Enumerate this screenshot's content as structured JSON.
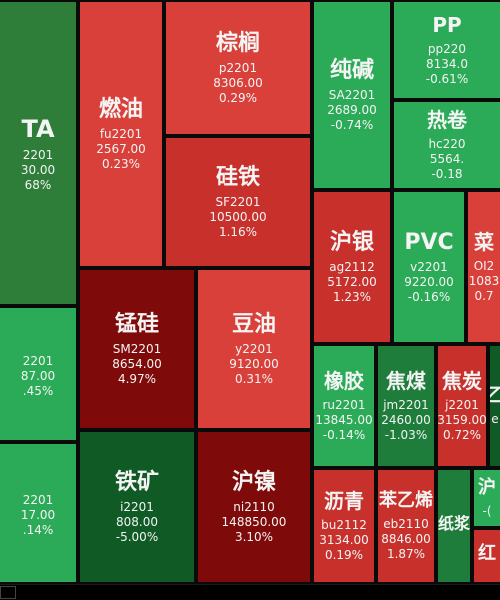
{
  "tiles": [
    {
      "id": "pta",
      "name": "TA",
      "code": "2201",
      "price": "30.00",
      "pct": "68%",
      "color": "neutral",
      "name_size": 24
    },
    {
      "id": "pp",
      "name": "PP",
      "code": "pp220",
      "price": "8134.0",
      "pct": "-0.61%",
      "color": "light-green",
      "name_size": 20
    },
    {
      "id": "chunjian",
      "name": "纯碱",
      "code": "SA2201",
      "price": "2689.00",
      "pct": "-0.74%",
      "color": "light-green",
      "name_size": 22
    },
    {
      "id": "zonglv",
      "name": "棕榈",
      "code": "p2201",
      "price": "8306.00",
      "pct": "0.29%",
      "color": "light-red",
      "name_size": 22
    },
    {
      "id": "ranyou",
      "name": "燃油",
      "code": "fu2201",
      "price": "2567.00",
      "pct": "0.23%",
      "color": "light-red",
      "name_size": 22
    },
    {
      "id": "rejuan",
      "name": "热卷",
      "code": "hc220",
      "price": "5564.",
      "pct": "-0.18",
      "color": "light-green",
      "name_size": 20
    },
    {
      "id": "guitie",
      "name": "硅铁",
      "code": "SF2201",
      "price": "10500.00",
      "pct": "1.16%",
      "color": "red",
      "name_size": 22
    },
    {
      "id": "huyin",
      "name": "沪银",
      "code": "ag2112",
      "price": "5172.00",
      "pct": "1.23%",
      "color": "red",
      "name_size": 22
    },
    {
      "id": "pvc",
      "name": "PVC",
      "code": "v2201",
      "price": "9220.00",
      "pct": "-0.16%",
      "color": "light-green",
      "name_size": 22
    },
    {
      "id": "cai",
      "name": "菜",
      "code": "OI2",
      "price": "1083",
      "pct": "0.7",
      "color": "light-red",
      "name_size": 20
    },
    {
      "id": "left2",
      "name": "",
      "code": "2201",
      "price": "87.00",
      "pct": ".45%",
      "color": "light-green",
      "name_size": 18
    },
    {
      "id": "menggui",
      "name": "锰硅",
      "code": "SM2201",
      "price": "8654.00",
      "pct": "4.97%",
      "color": "dark-red",
      "name_size": 22
    },
    {
      "id": "douyou",
      "name": "豆油",
      "code": "y2201",
      "price": "9120.00",
      "pct": "0.31%",
      "color": "light-red",
      "name_size": 22
    },
    {
      "id": "xiangjiao",
      "name": "橡胶",
      "code": "ru2201",
      "price": "13845.00",
      "pct": "-0.14%",
      "color": "light-green",
      "name_size": 20
    },
    {
      "id": "jiaomei",
      "name": "焦煤",
      "code": "jm2201",
      "price": "2460.00",
      "pct": "-1.03%",
      "color": "mid-green",
      "name_size": 20
    },
    {
      "id": "jiaotan",
      "name": "焦炭",
      "code": "j2201",
      "price": "3159.00",
      "pct": "0.72%",
      "color": "red",
      "name_size": 20
    },
    {
      "id": "yi",
      "name": "乙",
      "code": "e",
      "price": "",
      "pct": "",
      "color": "dark-green",
      "name_size": 18
    },
    {
      "id": "left3",
      "name": "",
      "code": "2201",
      "price": "17.00",
      "pct": ".14%",
      "color": "light-green",
      "name_size": 18
    },
    {
      "id": "tiekuang",
      "name": "铁矿",
      "code": "i2201",
      "price": "808.00",
      "pct": "-5.00%",
      "color": "dark-green",
      "name_size": 22
    },
    {
      "id": "hunie",
      "name": "沪镍",
      "code": "ni2110",
      "price": "148850.00",
      "pct": "3.10%",
      "color": "dark-red",
      "name_size": 22
    },
    {
      "id": "liqing",
      "name": "沥青",
      "code": "bu2112",
      "price": "3134.00",
      "pct": "0.19%",
      "color": "red",
      "name_size": 20
    },
    {
      "id": "benyixi",
      "name": "苯乙烯",
      "code": "eb2110",
      "price": "8846.00",
      "pct": "1.87%",
      "color": "red",
      "name_size": 18
    },
    {
      "id": "zhijiang",
      "name": "纸浆",
      "code": "",
      "price": "",
      "pct": "",
      "color": "mid-green",
      "name_size": 16
    },
    {
      "id": "hu",
      "name": "沪",
      "code": "-(",
      "price": "",
      "pct": "",
      "color": "light-green",
      "name_size": 18
    },
    {
      "id": "hong",
      "name": "红",
      "code": "",
      "price": "",
      "pct": "",
      "color": "red",
      "name_size": 18
    }
  ]
}
